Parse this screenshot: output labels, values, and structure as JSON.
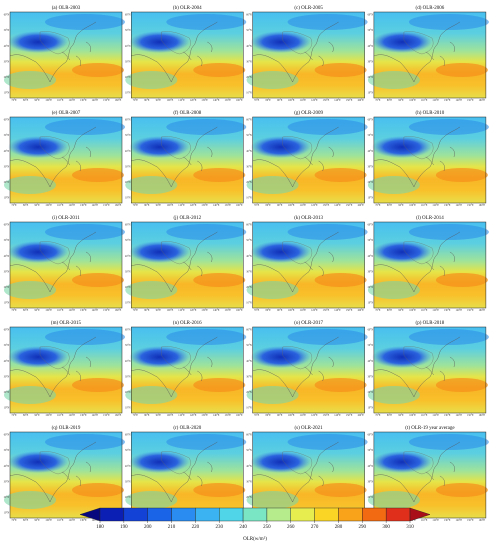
{
  "panels": [
    {
      "title": "(a) OLR-2003"
    },
    {
      "title": "(b) OLR-2004"
    },
    {
      "title": "(c) OLR-2005"
    },
    {
      "title": "(d) OLR-2006"
    },
    {
      "title": "(e) OLR-2007"
    },
    {
      "title": "(f) OLR-2008"
    },
    {
      "title": "(g) OLR-2009"
    },
    {
      "title": "(h) OLR-2010"
    },
    {
      "title": "(i) OLR-2011"
    },
    {
      "title": "(j) OLR-2012"
    },
    {
      "title": "(k) OLR-2013"
    },
    {
      "title": "(l) OLR-2014"
    },
    {
      "title": "(m) OLR-2015"
    },
    {
      "title": "(n) OLR-2016"
    },
    {
      "title": "(o) OLR-2017"
    },
    {
      "title": "(p) OLR-2018"
    },
    {
      "title": "(q) OLR-2019"
    },
    {
      "title": "(r) OLR-2020"
    },
    {
      "title": "(s) OLR-2021"
    },
    {
      "title": "(t) OLR-19 year average"
    }
  ],
  "lat_labels": [
    "60°N",
    "50°N",
    "40°N",
    "30°N",
    "20°N",
    "10°N"
  ],
  "lon_labels": [
    "70°E",
    "80°E",
    "90°E",
    "100°E",
    "110°E",
    "120°E",
    "130°E",
    "140°E",
    "150°E",
    "160°E"
  ],
  "colorbar": {
    "label": "OLR(w/m²)",
    "ticks": [
      180,
      190,
      200,
      210,
      220,
      230,
      240,
      250,
      260,
      270,
      280,
      290,
      300,
      310
    ],
    "colors": [
      "#08087e",
      "#0c1fb4",
      "#1342d6",
      "#1a64e8",
      "#2a8bf0",
      "#3bb3f2",
      "#4fd4e8",
      "#7ae6c3",
      "#b6ec8c",
      "#e7ec4f",
      "#fbd526",
      "#f9a31a",
      "#f26a12",
      "#e0301b",
      "#a80f18"
    ]
  }
}
